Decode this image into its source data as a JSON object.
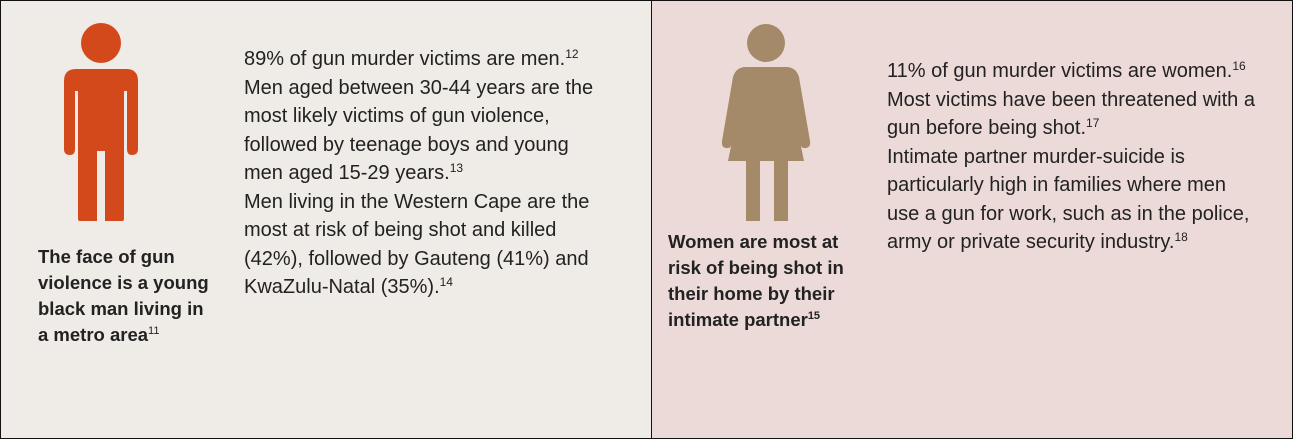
{
  "panels": [
    {
      "caption": {
        "text": "The face of gun violence is a young black man living in a metro area",
        "note": "11"
      },
      "paragraphs": [
        {
          "text": "89% of gun murder victims are men.",
          "note": "12"
        },
        {
          "text": "Men aged between 30-44 years are the most likely victims of gun violence, followed by teenage boys and young men aged 15-29 years.",
          "note": "13"
        },
        {
          "text": "Men living in the Western Cape are the most at risk of being shot and killed (42%), followed by Gauteng (41%) and KwaZulu-Natal (35%).",
          "note": "14"
        }
      ]
    },
    {
      "caption": {
        "text": "Women are most at risk of being shot in their home by their intimate partner",
        "note": "15"
      },
      "paragraphs": [
        {
          "text": "11% of gun murder victims are women.",
          "note": "16"
        },
        {
          "text": "Most victims have been threatened with a gun before being shot.",
          "note": "17"
        },
        {
          "text": "Intimate partner murder-suicide is particularly high in families where men use a gun for work, such as in the police, army or private security industry.",
          "note": "18"
        }
      ]
    }
  ]
}
